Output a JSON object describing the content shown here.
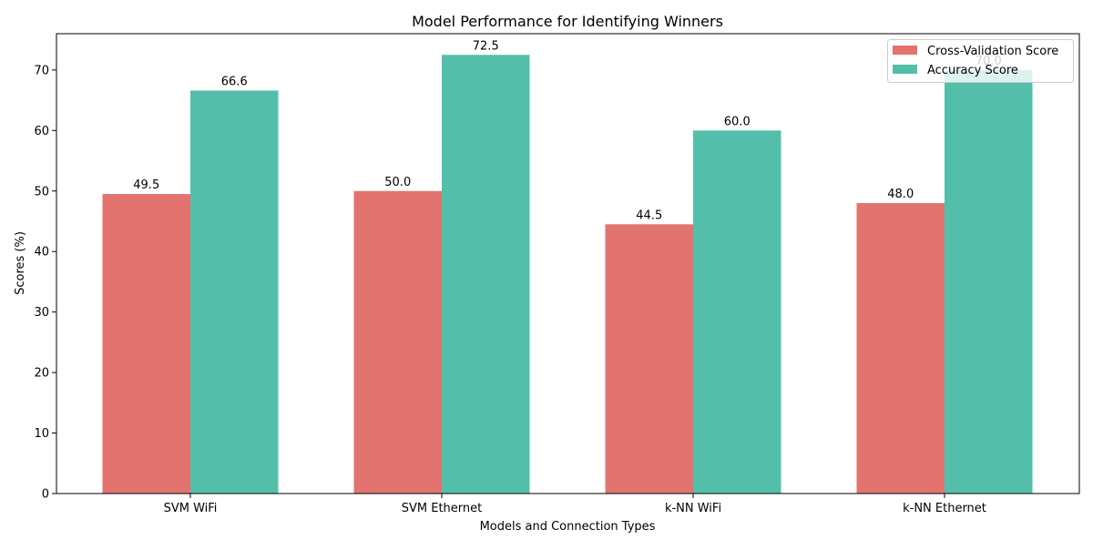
{
  "chart_data": {
    "type": "bar",
    "title": "Model Performance for Identifying Winners",
    "xlabel": "Models and Connection Types",
    "ylabel": "Scores (%)",
    "categories": [
      "SVM WiFi",
      "SVM Ethernet",
      "k-NN WiFi",
      "k-NN Ethernet"
    ],
    "series": [
      {
        "name": "Cross-Validation Score",
        "color": "#e3736f",
        "values": [
          49.5,
          50.0,
          44.5,
          48.0
        ],
        "labels": [
          "49.5",
          "50.0",
          "44.5",
          "48.0"
        ]
      },
      {
        "name": "Accuracy Score",
        "color": "#53bfaa",
        "values": [
          66.6,
          72.5,
          60.0,
          70.0
        ],
        "labels": [
          "66.6",
          "72.5",
          "60.0",
          "70.0"
        ]
      }
    ],
    "ylim": [
      0,
      76
    ],
    "yticks": [
      0,
      10,
      20,
      30,
      40,
      50,
      60,
      70
    ],
    "grid": false,
    "legend_position": "top-right"
  }
}
